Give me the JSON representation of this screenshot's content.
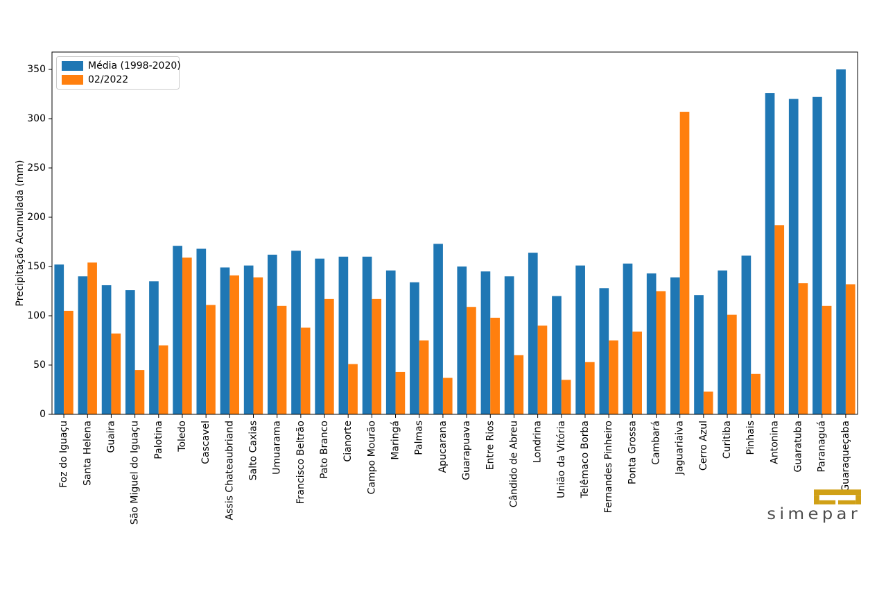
{
  "chart_data": {
    "type": "bar",
    "title": "",
    "xlabel": "",
    "ylabel": "Precipitação Acumulada (mm)",
    "ylim": [
      0,
      367.6
    ],
    "yticks": [
      0,
      50,
      100,
      150,
      200,
      250,
      300,
      350
    ],
    "grid": false,
    "legend_position": "upper left",
    "categories": [
      "Foz do Iguaçu",
      "Santa Helena",
      "Guaira",
      "São Miguel do Iguaçu",
      "Palotina",
      "Toledo",
      "Cascavel",
      "Assis Chateaubriand",
      "Salto Caxias",
      "Umuarama",
      "Francisco Beltrão",
      "Pato Branco",
      "Cianorte",
      "Campo Mourão",
      "Maringá",
      "Palmas",
      "Apucarana",
      "Guarapuava",
      "Entre Rios",
      "Cândido de Abreu",
      "Londrina",
      "União da Vitória",
      "Telêmaco Borba",
      "Fernandes Pinheiro",
      "Ponta Grossa",
      "Cambará",
      "Jaguariaiva",
      "Cerro Azul",
      "Curitiba",
      "Pinhais",
      "Antonina",
      "Guaratuba",
      "Paranaguá",
      "Guaraqueçaba"
    ],
    "series": [
      {
        "name": "Média (1998-2020)",
        "color": "#1f77b4",
        "values": [
          152,
          140,
          131,
          126,
          135,
          171,
          168,
          149,
          151,
          162,
          166,
          158,
          160,
          160,
          146,
          134,
          173,
          150,
          145,
          140,
          164,
          120,
          151,
          128,
          153,
          143,
          139,
          121,
          146,
          161,
          326,
          320,
          322,
          350
        ]
      },
      {
        "name": "02/2022",
        "color": "#ff7f0e",
        "values": [
          105,
          154,
          82,
          45,
          70,
          159,
          111,
          141,
          139,
          110,
          88,
          117,
          51,
          117,
          43,
          75,
          37,
          109,
          98,
          60,
          90,
          35,
          53,
          75,
          84,
          125,
          307,
          23,
          101,
          41,
          192,
          133,
          110,
          132
        ]
      }
    ]
  },
  "branding": {
    "logo_text": "simepar",
    "logo_text_color": "#4d4d4d",
    "logo_mark_color": "#d0a016"
  }
}
